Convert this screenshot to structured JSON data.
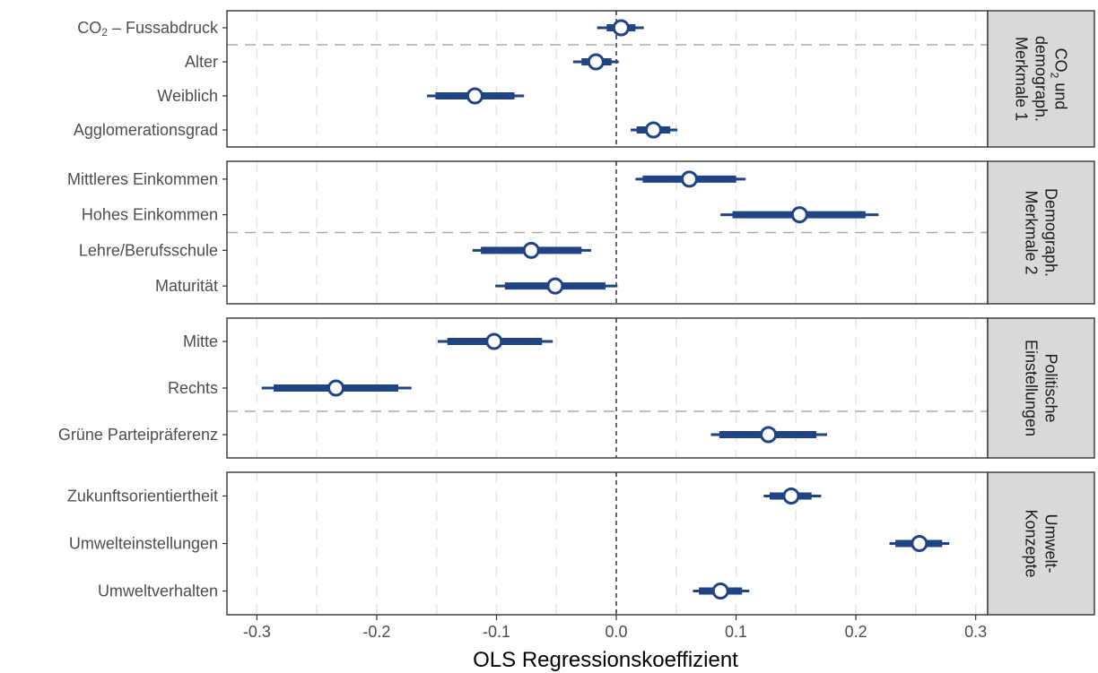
{
  "chart_data": {
    "type": "coefficient-plot",
    "xlabel": "OLS Regressionskoeffizient",
    "xlim": [
      -0.325,
      0.31
    ],
    "xticks": [
      -0.3,
      -0.2,
      -0.1,
      0.0,
      0.1,
      0.2,
      0.3
    ],
    "xtick_labels": [
      "-0.3",
      "-0.2",
      "-0.1",
      "0.0",
      "0.1",
      "0.2",
      "0.3"
    ],
    "reference_line": 0,
    "grid": true,
    "colors": {
      "interval": "#1f4383",
      "point_fill": "#ffffff",
      "strip_fill": "#d9d9d9",
      "separator": "#aaaaaa"
    },
    "panels": [
      {
        "strip_lines": [
          "CO",
          "und",
          "demograph.",
          "Merkmale 1"
        ],
        "strip_sub": "2",
        "separators_after": [
          0
        ],
        "terms": [
          {
            "label": "CO",
            "label_sub": "2",
            "label_rest": " – Fussabdruck",
            "estimate": 0.004,
            "inner": [
              -0.008,
              0.016
            ],
            "outer": [
              -0.016,
              0.023
            ]
          },
          {
            "label": "Alter",
            "estimate": -0.017,
            "inner": [
              -0.029,
              -0.004
            ],
            "outer": [
              -0.036,
              0.002
            ]
          },
          {
            "label": "Weiblich",
            "estimate": -0.118,
            "inner": [
              -0.151,
              -0.085
            ],
            "outer": [
              -0.158,
              -0.077
            ]
          },
          {
            "label": "Agglomerationsgrad",
            "estimate": 0.031,
            "inner": [
              0.017,
              0.045
            ],
            "outer": [
              0.012,
              0.051
            ]
          }
        ]
      },
      {
        "strip_lines": [
          "Demograph.",
          "Merkmale 2"
        ],
        "separators_after": [
          1
        ],
        "terms": [
          {
            "label": "Mittleres Einkommen",
            "estimate": 0.061,
            "inner": [
              0.022,
              0.1
            ],
            "outer": [
              0.016,
              0.108
            ]
          },
          {
            "label": "Hohes Einkommen",
            "estimate": 0.153,
            "inner": [
              0.097,
              0.208
            ],
            "outer": [
              0.087,
              0.219
            ]
          },
          {
            "label": "Lehre/Berufsschule",
            "estimate": -0.071,
            "inner": [
              -0.113,
              -0.029
            ],
            "outer": [
              -0.12,
              -0.021
            ]
          },
          {
            "label": "Maturität",
            "estimate": -0.051,
            "inner": [
              -0.093,
              -0.009
            ],
            "outer": [
              -0.101,
              0.001
            ]
          }
        ]
      },
      {
        "strip_lines": [
          "Politische",
          "Einstellungen"
        ],
        "separators_after": [
          1
        ],
        "terms": [
          {
            "label": "Mitte",
            "estimate": -0.102,
            "inner": [
              -0.141,
              -0.062
            ],
            "outer": [
              -0.149,
              -0.053
            ]
          },
          {
            "label": "Rechts",
            "estimate": -0.234,
            "inner": [
              -0.286,
              -0.182
            ],
            "outer": [
              -0.296,
              -0.171
            ]
          },
          {
            "label": "Grüne Parteipräferenz",
            "estimate": 0.127,
            "inner": [
              0.086,
              0.167
            ],
            "outer": [
              0.079,
              0.176
            ]
          }
        ]
      },
      {
        "strip_lines": [
          "Umwelt-",
          "Konzepte"
        ],
        "separators_after": [],
        "terms": [
          {
            "label": "Zukunftsorientiertheit",
            "estimate": 0.146,
            "inner": [
              0.128,
              0.163
            ],
            "outer": [
              0.123,
              0.171
            ]
          },
          {
            "label": "Umwelteinstellungen",
            "estimate": 0.253,
            "inner": [
              0.233,
              0.272
            ],
            "outer": [
              0.228,
              0.278
            ]
          },
          {
            "label": "Umweltverhalten",
            "estimate": 0.087,
            "inner": [
              0.069,
              0.105
            ],
            "outer": [
              0.064,
              0.111
            ]
          }
        ]
      }
    ]
  }
}
